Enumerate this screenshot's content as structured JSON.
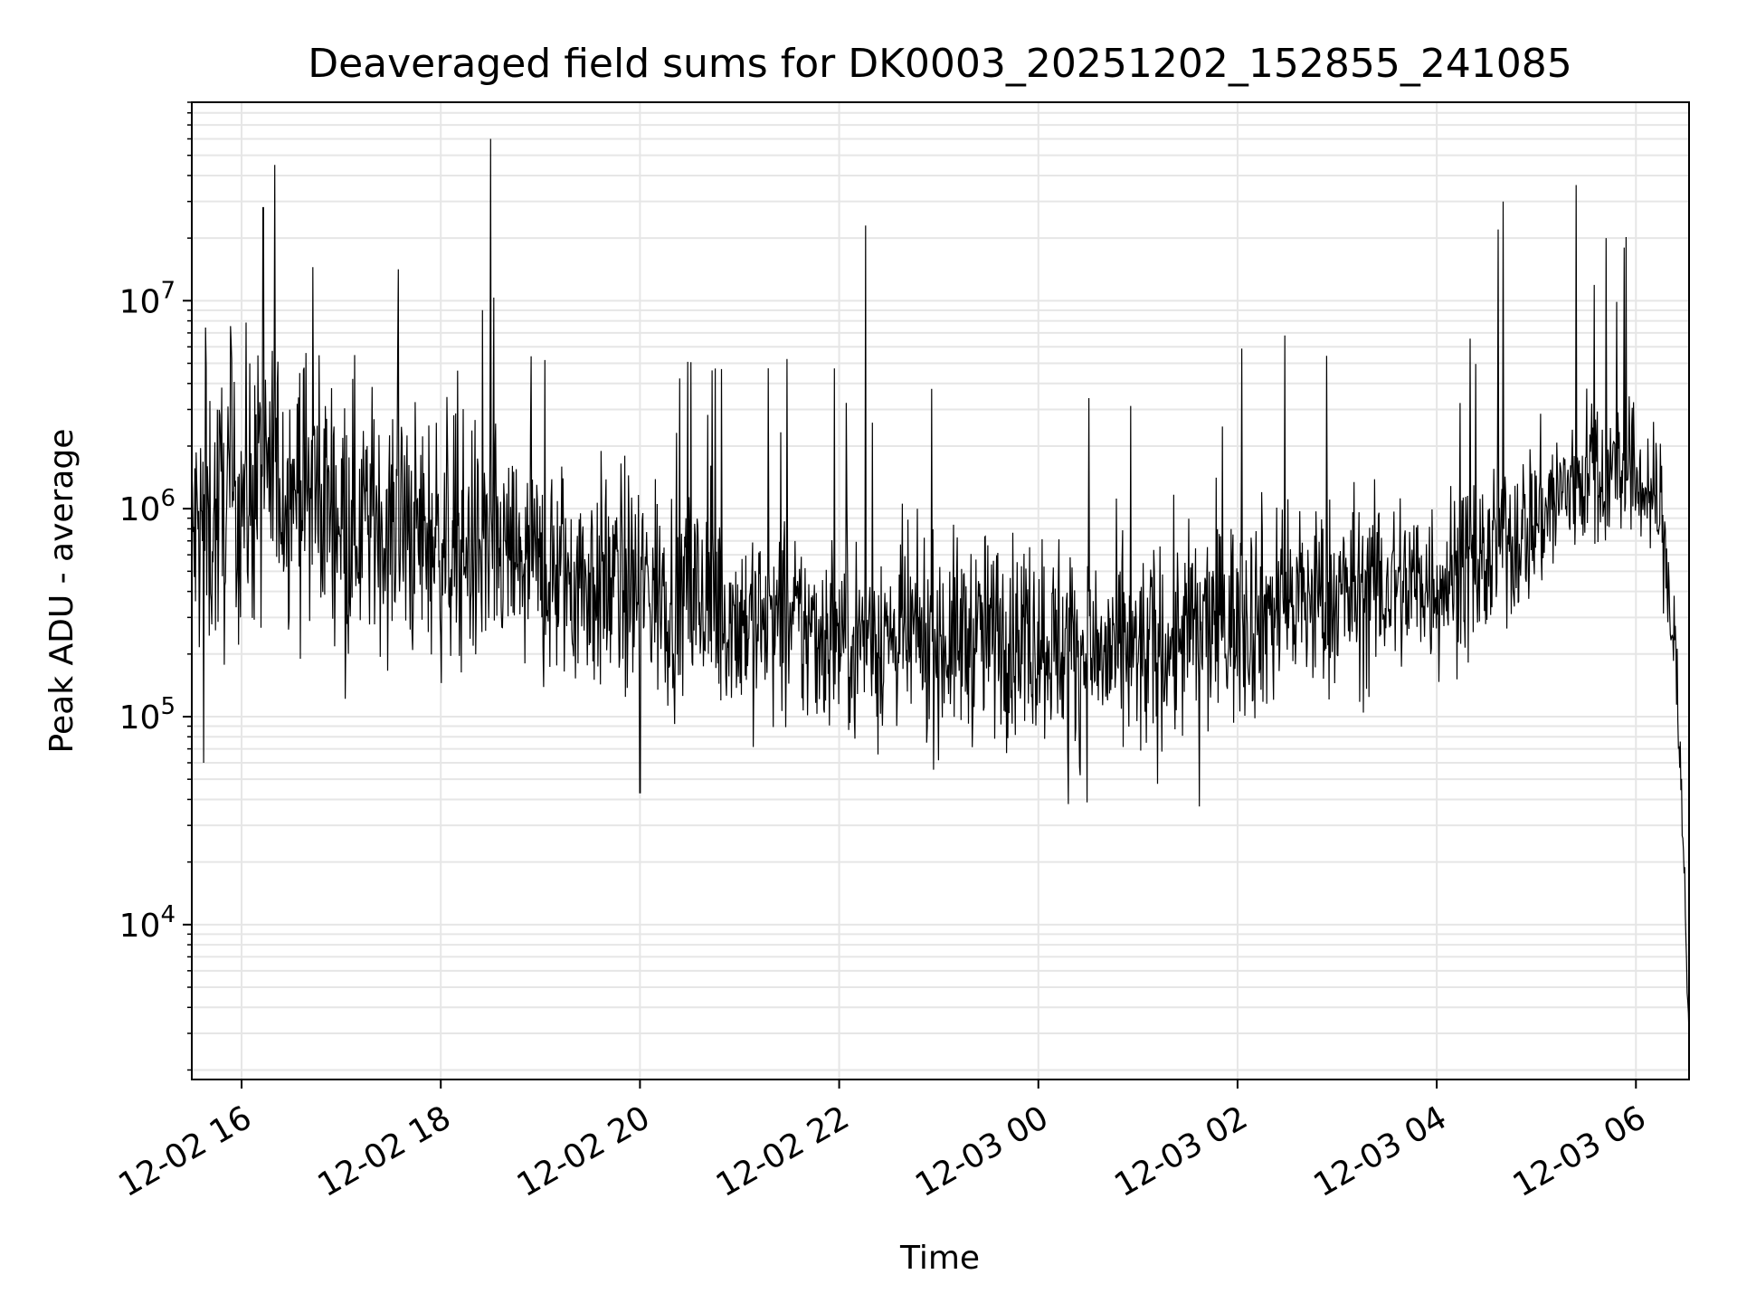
{
  "chart_data": {
    "type": "line",
    "title": "Deaveraged field sums for DK0003_20251202_152855_241085",
    "xlabel": "Time",
    "ylabel": "Peak ADU - average",
    "yscale": "log",
    "ylim": [
      1800,
      90000000
    ],
    "xlim": [
      "12-02 15:30",
      "12-03 06:32"
    ],
    "grid": true,
    "line_color": "#000000",
    "grid_color": "#e6e6e6",
    "x_ticks": [
      {
        "value": "12-02 16:00",
        "label": "12-02 16"
      },
      {
        "value": "12-02 18:00",
        "label": "12-02 18"
      },
      {
        "value": "12-02 20:00",
        "label": "12-02 20"
      },
      {
        "value": "12-02 22:00",
        "label": "12-02 22"
      },
      {
        "value": "12-03 00:00",
        "label": "12-03 00"
      },
      {
        "value": "12-03 02:00",
        "label": "12-03 02"
      },
      {
        "value": "12-03 04:00",
        "label": "12-03 04"
      },
      {
        "value": "12-03 06:00",
        "label": "12-03 06"
      }
    ],
    "y_ticks": [
      {
        "value": 10000,
        "mantissa": "10",
        "exp": "4"
      },
      {
        "value": 100000,
        "mantissa": "10",
        "exp": "5"
      },
      {
        "value": 1000000,
        "mantissa": "10",
        "exp": "6"
      },
      {
        "value": 10000000,
        "mantissa": "10",
        "exp": "7"
      }
    ],
    "series": [
      {
        "x": [
          "12-02 15:30",
          "12-02 16:00",
          "12-02 16:30",
          "12-02 17:00",
          "12-02 17:30",
          "12-02 18:00",
          "12-02 18:30",
          "12-02 19:00",
          "12-02 19:30",
          "12-02 20:00",
          "12-02 20:30",
          "12-02 21:00",
          "12-02 21:30",
          "12-02 22:00",
          "12-02 22:30",
          "12-02 23:00",
          "12-02 23:30",
          "12-03 00:00",
          "12-03 00:30",
          "12-03 01:00",
          "12-03 01:30",
          "12-03 02:00",
          "12-03 02:30",
          "12-03 03:00",
          "12-03 03:30",
          "12-03 04:00",
          "12-03 04:30",
          "12-03 05:00",
          "12-03 05:30",
          "12-03 06:00",
          "12-03 06:15",
          "12-03 06:25",
          "12-03 06:32"
        ],
        "y": [
          700000,
          1200000,
          1400000,
          1000000,
          800000,
          700000,
          600000,
          500000,
          450000,
          420000,
          380000,
          300000,
          270000,
          250000,
          240000,
          230000,
          250000,
          250000,
          200000,
          190000,
          250000,
          300000,
          350000,
          380000,
          420000,
          450000,
          550000,
          900000,
          1500000,
          1400000,
          1000000,
          150000,
          3000
        ],
        "noise_dex": [
          0.62,
          0.62,
          0.6,
          0.58,
          0.56,
          0.55,
          0.55,
          0.52,
          0.5,
          0.5,
          0.48,
          0.46,
          0.44,
          0.44,
          0.44,
          0.44,
          0.44,
          0.46,
          0.46,
          0.46,
          0.46,
          0.46,
          0.46,
          0.44,
          0.42,
          0.4,
          0.38,
          0.36,
          0.34,
          0.32,
          0.3,
          0.3,
          0.2
        ],
        "spikes": [
          {
            "x": "12-02 16:13",
            "y": 28000000
          },
          {
            "x": "12-02 16:20",
            "y": 45000000
          },
          {
            "x": "12-02 18:30",
            "y": 60000000
          },
          {
            "x": "12-02 22:16",
            "y": 23000000
          },
          {
            "x": "12-03 04:37",
            "y": 22000000
          },
          {
            "x": "12-03 04:40",
            "y": 30000000
          },
          {
            "x": "12-03 05:24",
            "y": 36000000
          },
          {
            "x": "12-03 05:42",
            "y": 20000000
          },
          {
            "x": "12-03 05:53",
            "y": 18000000
          }
        ],
        "dips": [
          {
            "x": "12-02 15:37",
            "y": 60000
          },
          {
            "x": "12-02 20:00",
            "y": 43000
          },
          {
            "x": "12-03 00:18",
            "y": 38000
          },
          {
            "x": "12-03 01:37",
            "y": 37000
          }
        ]
      }
    ]
  }
}
